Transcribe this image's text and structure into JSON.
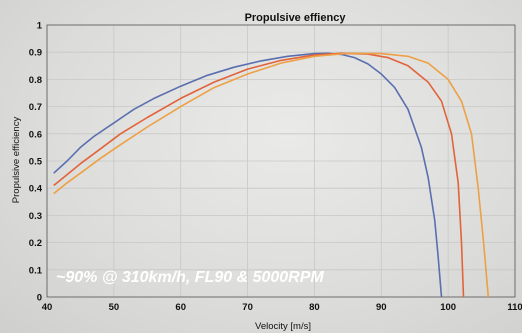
{
  "chart_data": {
    "type": "line",
    "title": "Propulsive effiency",
    "xlabel": "Velocity [m/s]",
    "ylabel": "Propulsive efficiency",
    "xlim": [
      40,
      110
    ],
    "ylim": [
      0,
      1
    ],
    "xticks": [
      "40",
      "50",
      "60",
      "70",
      "80",
      "90",
      "100",
      "110"
    ],
    "yticks": [
      "0",
      "0.1",
      "0.2",
      "0.3",
      "0.4",
      "0.5",
      "0.6",
      "0.7",
      "0.8",
      "0.9",
      "1"
    ],
    "grid": true,
    "series": [
      {
        "color": "#5a6fb0",
        "x": [
          41,
          43,
          45,
          47,
          50,
          53,
          56,
          60,
          64,
          68,
          72,
          76,
          80,
          82,
          84,
          86,
          88,
          90,
          92,
          94,
          96,
          97,
          98,
          98.5,
          99
        ],
        "y": [
          0.455,
          0.5,
          0.55,
          0.59,
          0.64,
          0.69,
          0.73,
          0.775,
          0.815,
          0.845,
          0.868,
          0.885,
          0.895,
          0.896,
          0.892,
          0.88,
          0.857,
          0.82,
          0.77,
          0.69,
          0.55,
          0.44,
          0.28,
          0.15,
          0.0
        ]
      },
      {
        "color": "#e2633a",
        "x": [
          41,
          43,
          45,
          48,
          51,
          55,
          60,
          65,
          70,
          75,
          80,
          84,
          88,
          91,
          94,
          97,
          99,
          100.5,
          101.5,
          102,
          102.3
        ],
        "y": [
          0.41,
          0.45,
          0.49,
          0.545,
          0.6,
          0.66,
          0.73,
          0.79,
          0.838,
          0.87,
          0.89,
          0.896,
          0.893,
          0.88,
          0.85,
          0.79,
          0.72,
          0.6,
          0.42,
          0.2,
          0.0
        ]
      },
      {
        "color": "#eda045",
        "x": [
          41,
          43,
          45,
          48,
          51,
          55,
          60,
          65,
          70,
          75,
          80,
          85,
          90,
          94,
          97,
          100,
          102,
          103.5,
          104.5,
          105.3,
          106
        ],
        "y": [
          0.38,
          0.42,
          0.455,
          0.51,
          0.56,
          0.625,
          0.7,
          0.77,
          0.82,
          0.86,
          0.885,
          0.896,
          0.895,
          0.885,
          0.86,
          0.8,
          0.72,
          0.6,
          0.4,
          0.2,
          0.0
        ]
      }
    ]
  },
  "annotation": {
    "text": "~90% @ 310km/h, FL90 & 5000RPM"
  }
}
